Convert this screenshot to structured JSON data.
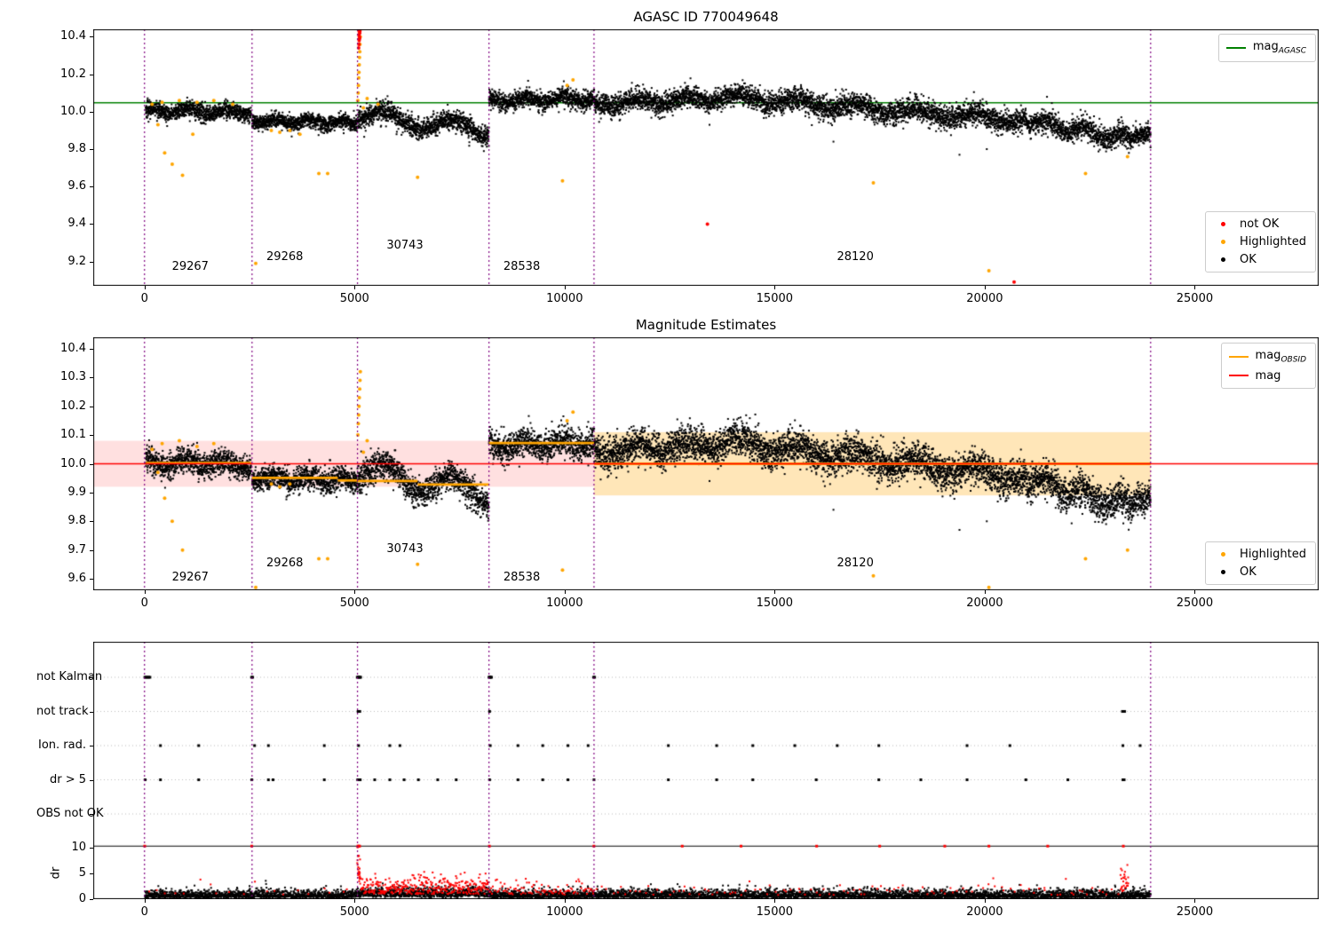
{
  "colors": {
    "ok": "#000000",
    "highlighted": "#ffa500",
    "not_ok": "#ff0000",
    "mag_agasc": "#008000",
    "mag_obsid": "#ffa500",
    "mag": "#ff0000",
    "boundary": "#800080",
    "band_pink": "rgba(255,0,0,0.12)",
    "band_orange": "rgba(255,165,0,0.28)",
    "grid": "#bbbbbb"
  },
  "chart_data": [
    {
      "id": "agasc_mag_plot",
      "type": "scatter",
      "title": "AGASC ID 770049648",
      "xlabel": "",
      "ylabel": "",
      "xlim": [
        -1220,
        27950
      ],
      "ylim": [
        9.07,
        10.44
      ],
      "xticks": [
        0,
        5000,
        10000,
        15000,
        20000,
        25000
      ],
      "xtick_labels": [
        "0",
        "5000",
        "10000",
        "15000",
        "20000",
        "25000"
      ],
      "yticks": [
        10.4,
        10.2,
        10.0,
        9.8,
        9.6,
        9.4,
        9.2
      ],
      "ytick_labels": [
        "10.4",
        "10.2",
        "10.0",
        "9.8",
        "9.6",
        "9.4",
        "9.2"
      ],
      "mag_agasc": 10.048,
      "boundaries": [
        0,
        2560,
        5070,
        8200,
        10700,
        23950
      ],
      "seed": 7,
      "ok_segments": [
        {
          "x0": 30,
          "x1": 2540,
          "y0": 10.005,
          "y1": 9.995,
          "noise": 0.022,
          "wave": 0.013,
          "period": 900,
          "phase": 0.5,
          "step": 2.5
        },
        {
          "x0": 2560,
          "x1": 5060,
          "y0": 9.952,
          "y1": 9.94,
          "noise": 0.02,
          "wave": 0.012,
          "period": 800,
          "phase": 2.1,
          "step": 2.5
        },
        {
          "x0": 5070,
          "x1": 8200,
          "y0": 9.985,
          "y1": 9.9,
          "noise": 0.027,
          "wave": 0.036,
          "period": 1600,
          "phase": 4.2,
          "step": 2.5
        },
        {
          "x0": 8200,
          "x1": 10700,
          "y0": 10.06,
          "y1": 10.072,
          "noise": 0.025,
          "wave": 0.016,
          "period": 900,
          "phase": 1.0,
          "step": 2.5
        },
        {
          "x0": 10700,
          "x1": 14000,
          "y0": 10.04,
          "y1": 10.075,
          "noise": 0.028,
          "wave": 0.018,
          "period": 1200,
          "phase": 3.0,
          "step": 2.5
        },
        {
          "x0": 14000,
          "x1": 21000,
          "y0": 10.075,
          "y1": 9.95,
          "noise": 0.03,
          "wave": 0.02,
          "period": 1400,
          "phase": 0.8,
          "step": 2.5
        },
        {
          "x0": 21000,
          "x1": 23500,
          "y0": 9.95,
          "y1": 9.85,
          "noise": 0.03,
          "wave": 0.022,
          "period": 900,
          "phase": 2.5,
          "step": 2.5
        },
        {
          "x0": 23500,
          "x1": 23950,
          "y0": 9.85,
          "y1": 9.9,
          "noise": 0.025,
          "wave": 0.01,
          "period": 400,
          "phase": 1.2,
          "step": 2.5
        }
      ],
      "ok_outliers": [
        [
          13450,
          9.93
        ],
        [
          16400,
          9.84
        ],
        [
          19400,
          9.77
        ],
        [
          20050,
          9.8
        ]
      ],
      "highlighted": [
        [
          180,
          10.04
        ],
        [
          420,
          10.05
        ],
        [
          830,
          10.06
        ],
        [
          1250,
          10.05
        ],
        [
          1650,
          10.06
        ],
        [
          2100,
          10.04
        ],
        [
          320,
          9.93
        ],
        [
          480,
          9.78
        ],
        [
          660,
          9.72
        ],
        [
          905,
          9.66
        ],
        [
          1150,
          9.88
        ],
        [
          2648,
          9.19
        ],
        [
          3020,
          9.9
        ],
        [
          3220,
          9.89
        ],
        [
          3460,
          9.9
        ],
        [
          3700,
          9.88
        ],
        [
          4150,
          9.67
        ],
        [
          4360,
          9.67
        ],
        [
          5078,
          10.06
        ],
        [
          5086,
          10.1
        ],
        [
          5094,
          10.14
        ],
        [
          5100,
          10.18
        ],
        [
          5106,
          10.21
        ],
        [
          5112,
          10.25
        ],
        [
          5118,
          10.29
        ],
        [
          5124,
          10.32
        ],
        [
          5130,
          10.36
        ],
        [
          5136,
          10.4
        ],
        [
          5210,
          10.02
        ],
        [
          5300,
          10.07
        ],
        [
          5560,
          10.04
        ],
        [
          6500,
          9.65
        ],
        [
          9950,
          9.63
        ],
        [
          10060,
          10.14
        ],
        [
          10200,
          10.17
        ],
        [
          17350,
          9.62
        ],
        [
          20100,
          9.15
        ],
        [
          22400,
          9.67
        ],
        [
          23400,
          9.76
        ]
      ],
      "not_ok": [
        [
          5098,
          10.34
        ],
        [
          5104,
          10.36
        ],
        [
          5110,
          10.38
        ],
        [
          5116,
          10.4
        ],
        [
          5122,
          10.42
        ],
        [
          5128,
          10.43
        ],
        [
          5102,
          10.41
        ],
        [
          5114,
          10.44
        ],
        [
          5108,
          10.43
        ],
        [
          5120,
          10.39
        ],
        [
          13400,
          9.4
        ],
        [
          20700,
          9.09
        ]
      ],
      "annotations": [
        {
          "text": "29267",
          "x": 1090,
          "y": 9.175
        },
        {
          "text": "29268",
          "x": 3340,
          "y": 9.225
        },
        {
          "text": "30743",
          "x": 6200,
          "y": 9.29
        },
        {
          "text": "28538",
          "x": 8980,
          "y": 9.175
        },
        {
          "text": "28120",
          "x": 16920,
          "y": 9.225
        }
      ],
      "legends": [
        {
          "position": "upper right",
          "items": [
            {
              "marker": "line",
              "color": "#008000",
              "main": "mag",
              "sub": "AGASC"
            }
          ]
        },
        {
          "position": "lower right",
          "items": [
            {
              "marker": "dot",
              "color": "#ff0000",
              "label": "not OK"
            },
            {
              "marker": "dot",
              "color": "#ffa500",
              "label": "Highlighted"
            },
            {
              "marker": "dot",
              "color": "#000000",
              "label": "OK"
            }
          ]
        }
      ]
    },
    {
      "id": "magnitude_estimates_plot",
      "type": "scatter",
      "title": "Magnitude Estimates",
      "xlabel": "",
      "ylabel": "",
      "xlim": [
        -1220,
        27950
      ],
      "ylim": [
        9.56,
        10.44
      ],
      "xticks": [
        0,
        5000,
        10000,
        15000,
        20000,
        25000
      ],
      "xtick_labels": [
        "0",
        "5000",
        "10000",
        "15000",
        "20000",
        "25000"
      ],
      "yticks": [
        10.4,
        10.3,
        10.2,
        10.1,
        10.0,
        9.9,
        9.8,
        9.7,
        9.6
      ],
      "ytick_labels": [
        "10.4",
        "10.3",
        "10.2",
        "10.1",
        "10.0",
        "9.9",
        "9.8",
        "9.7",
        "9.6"
      ],
      "mag": 10.0,
      "bands": [
        {
          "x0": -1220,
          "x1": 10700,
          "y0": 9.92,
          "y1": 10.08,
          "color": "band_pink"
        },
        {
          "x0": 10700,
          "x1": 23950,
          "y0": 9.89,
          "y1": 10.11,
          "color": "band_orange"
        }
      ],
      "obsid_segments": [
        {
          "x0": 30,
          "x1": 2540,
          "y": 10.003
        },
        {
          "x0": 2560,
          "x1": 4600,
          "y": 9.951
        },
        {
          "x0": 4600,
          "x1": 5060,
          "y": 9.942
        },
        {
          "x0": 5070,
          "x1": 6500,
          "y": 9.94
        },
        {
          "x0": 6500,
          "x1": 8200,
          "y": 9.928
        },
        {
          "x0": 8200,
          "x1": 10700,
          "y": 10.072
        },
        {
          "x0": 10700,
          "x1": 23950,
          "y": 10.0
        }
      ],
      "boundaries": [
        0,
        2560,
        5070,
        8200,
        10700,
        23950
      ],
      "seed": 13,
      "ok_segments": [
        {
          "x0": 30,
          "x1": 2540,
          "y0": 10.005,
          "y1": 9.995,
          "noise": 0.022,
          "wave": 0.013,
          "period": 900,
          "phase": 0.9,
          "step": 2.5
        },
        {
          "x0": 2560,
          "x1": 5060,
          "y0": 9.952,
          "y1": 9.94,
          "noise": 0.02,
          "wave": 0.012,
          "period": 800,
          "phase": 2.4,
          "step": 2.5
        },
        {
          "x0": 5070,
          "x1": 8200,
          "y0": 9.975,
          "y1": 9.895,
          "noise": 0.026,
          "wave": 0.038,
          "period": 1600,
          "phase": 4.2,
          "step": 2.5
        },
        {
          "x0": 8200,
          "x1": 10700,
          "y0": 10.06,
          "y1": 10.075,
          "noise": 0.025,
          "wave": 0.016,
          "period": 900,
          "phase": 1.3,
          "step": 2.5
        },
        {
          "x0": 10700,
          "x1": 14000,
          "y0": 10.04,
          "y1": 10.075,
          "noise": 0.028,
          "wave": 0.018,
          "period": 1200,
          "phase": 3.0,
          "step": 2.5
        },
        {
          "x0": 14000,
          "x1": 21000,
          "y0": 10.075,
          "y1": 9.95,
          "noise": 0.03,
          "wave": 0.02,
          "period": 1400,
          "phase": 0.8,
          "step": 2.5
        },
        {
          "x0": 21000,
          "x1": 23500,
          "y0": 9.95,
          "y1": 9.85,
          "noise": 0.03,
          "wave": 0.022,
          "period": 900,
          "phase": 2.5,
          "step": 2.5
        },
        {
          "x0": 23500,
          "x1": 23950,
          "y0": 9.85,
          "y1": 9.9,
          "noise": 0.025,
          "wave": 0.01,
          "period": 400,
          "phase": 1.2,
          "step": 2.5
        }
      ],
      "ok_outliers": [
        [
          13450,
          9.94
        ],
        [
          16400,
          9.84
        ],
        [
          19400,
          9.77
        ],
        [
          20050,
          9.8
        ]
      ],
      "highlighted": [
        [
          180,
          10.05
        ],
        [
          420,
          10.07
        ],
        [
          830,
          10.08
        ],
        [
          1250,
          10.06
        ],
        [
          1650,
          10.07
        ],
        [
          320,
          9.97
        ],
        [
          480,
          9.88
        ],
        [
          660,
          9.8
        ],
        [
          905,
          9.7
        ],
        [
          2648,
          9.57
        ],
        [
          3020,
          9.93
        ],
        [
          3220,
          9.92
        ],
        [
          3460,
          9.93
        ],
        [
          4150,
          9.67
        ],
        [
          4360,
          9.67
        ],
        [
          5080,
          10.1
        ],
        [
          5090,
          10.14
        ],
        [
          5098,
          10.17
        ],
        [
          5106,
          10.2
        ],
        [
          5114,
          10.23
        ],
        [
          5122,
          10.26
        ],
        [
          5130,
          10.29
        ],
        [
          5138,
          10.32
        ],
        [
          5210,
          10.04
        ],
        [
          5300,
          10.08
        ],
        [
          6500,
          9.65
        ],
        [
          9950,
          9.63
        ],
        [
          10060,
          10.15
        ],
        [
          10200,
          10.18
        ],
        [
          17350,
          9.61
        ],
        [
          20100,
          9.57
        ],
        [
          22400,
          9.67
        ],
        [
          23400,
          9.7
        ]
      ],
      "not_ok": [],
      "annotations": [
        {
          "text": "29267",
          "x": 1090,
          "y": 9.605
        },
        {
          "text": "29268",
          "x": 3340,
          "y": 9.655
        },
        {
          "text": "30743",
          "x": 6200,
          "y": 9.705
        },
        {
          "text": "28538",
          "x": 8980,
          "y": 9.605
        },
        {
          "text": "28120",
          "x": 16920,
          "y": 9.655
        }
      ],
      "legends": [
        {
          "position": "upper right",
          "items": [
            {
              "marker": "line",
              "color": "#ffa500",
              "main": "mag",
              "sub": "OBSID"
            },
            {
              "marker": "line",
              "color": "#ff0000",
              "main": "mag",
              "sub": ""
            }
          ]
        },
        {
          "position": "lower right",
          "items": [
            {
              "marker": "dot",
              "color": "#ffa500",
              "label": "Highlighted"
            },
            {
              "marker": "dot",
              "color": "#000000",
              "label": "OK"
            }
          ]
        }
      ]
    },
    {
      "id": "flags_and_dr_plot",
      "type": "scatter",
      "title": "",
      "xlabel": "",
      "ylabel": "dr",
      "xlim": [
        -1220,
        27950
      ],
      "xticks": [
        0,
        5000,
        10000,
        15000,
        20000,
        25000
      ],
      "xtick_labels": [
        "0",
        "5000",
        "10000",
        "15000",
        "20000",
        "25000"
      ],
      "boundaries": [
        0,
        2560,
        5070,
        8200,
        10700,
        23950
      ],
      "seed": 29,
      "rows": [
        {
          "label": "not Kalman",
          "x": [
            10,
            40,
            70,
            100,
            130,
            2550,
            2575,
            5065,
            5085,
            5105,
            5125,
            5145,
            8200,
            8220,
            8240,
            8260,
            10690,
            10715
          ]
        },
        {
          "label": "not track",
          "x": [
            5085,
            5105,
            5125,
            8215,
            23280,
            23305,
            23330
          ]
        },
        {
          "label": "Ion. rad.",
          "x": [
            380,
            1290,
            2620,
            2950,
            4280,
            5095,
            5840,
            6080,
            8230,
            8890,
            9480,
            10080,
            10560,
            12470,
            13620,
            14480,
            15480,
            16490,
            17480,
            19580,
            20600,
            23290,
            23700
          ]
        },
        {
          "label": "dr > 5",
          "x": [
            15,
            380,
            1290,
            2555,
            2950,
            3060,
            4280,
            5075,
            5095,
            5115,
            5135,
            5480,
            5840,
            6180,
            6520,
            6980,
            7420,
            8215,
            8890,
            9480,
            10080,
            10700,
            12470,
            13620,
            14480,
            15990,
            17480,
            18480,
            19580,
            20980,
            21980,
            23290,
            23320
          ]
        },
        {
          "label": "OBS not OK",
          "x": []
        }
      ],
      "dr": {
        "axis_ticks": [
          0,
          5,
          10
        ],
        "cap_line": 10.3,
        "black": {
          "x0": 15,
          "x1": 23950,
          "step": 4,
          "base": 0.3,
          "spread": 0.75
        },
        "red_regions": [
          {
            "x0": 0,
            "x1": 5060,
            "step": 260,
            "base": 0.9,
            "spread": 1.1
          },
          {
            "x0": 5065,
            "x1": 5135,
            "step": 3,
            "base": 3.0,
            "spread": 3.2
          },
          {
            "x0": 5140,
            "x1": 8200,
            "step": 9,
            "base": 1.0,
            "spread": 1.6
          },
          {
            "x0": 8200,
            "x1": 10700,
            "step": 26,
            "base": 0.9,
            "spread": 1.2
          },
          {
            "x0": 10700,
            "x1": 23200,
            "step": 110,
            "base": 0.8,
            "spread": 1.1
          },
          {
            "x0": 23230,
            "x1": 23420,
            "step": 7,
            "base": 1.5,
            "spread": 2.4
          }
        ],
        "cap_points_x": [
          5,
          2553,
          5080,
          5100,
          5120,
          8210,
          10698,
          12800,
          14200,
          16000,
          17500,
          19050,
          20100,
          21500,
          23300
        ]
      }
    }
  ]
}
